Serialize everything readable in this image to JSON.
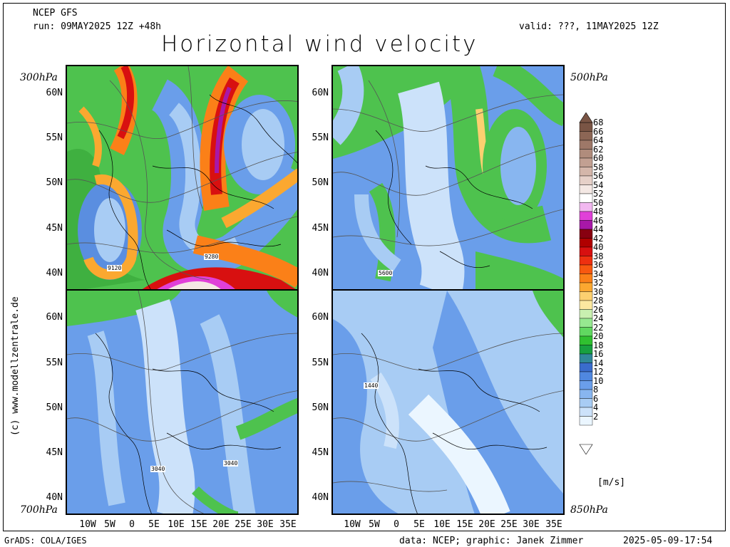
{
  "header": {
    "model": "NCEP GFS",
    "run": "run: 09MAY2025 12Z +48h",
    "valid": "valid: ???, 11MAY2025 12Z",
    "title": "Horizontal wind velocity"
  },
  "levels": {
    "top_left": "300hPa",
    "top_right": "500hPa",
    "bottom_left": "700hPa",
    "bottom_right": "850hPa"
  },
  "credit": "(c) www.modellzentrale.de",
  "lat_labels_top": [
    "60N",
    "55N",
    "50N",
    "45N",
    "40N"
  ],
  "lat_labels_bottom": [
    "60N",
    "55N",
    "50N",
    "45N",
    "40N"
  ],
  "lon_labels": [
    "10W",
    "5W",
    "0",
    "5E",
    "10E",
    "15E",
    "20E",
    "25E",
    "30E",
    "35E"
  ],
  "contour_labels": {
    "p300_a": "9120",
    "p300_b": "9280",
    "p500_a": "5600",
    "p700_a": "3040",
    "p700_b": "3040",
    "p850_a": "1440"
  },
  "colorbar": {
    "ticks": [
      "68",
      "66",
      "64",
      "62",
      "60",
      "58",
      "56",
      "54",
      "52",
      "50",
      "48",
      "46",
      "44",
      "42",
      "40",
      "38",
      "36",
      "34",
      "32",
      "30",
      "28",
      "26",
      "24",
      "22",
      "20",
      "18",
      "16",
      "14",
      "12",
      "10",
      "8",
      "6",
      "4",
      "2"
    ],
    "colors": [
      "#7a5545",
      "#8c6655",
      "#9e7868",
      "#b08c7c",
      "#c2a092",
      "#d4b6aa",
      "#e6d0c8",
      "#f4e8e4",
      "#ffffff",
      "#f2b8f0",
      "#e040d8",
      "#a818a8",
      "#880010",
      "#b00000",
      "#d81010",
      "#ee3010",
      "#f85810",
      "#fb8018",
      "#fba830",
      "#fcd070",
      "#fbe8a0",
      "#c8f0b0",
      "#96e890",
      "#60d860",
      "#30c030",
      "#18a040",
      "#308898",
      "#3a6ccc",
      "#5088e0",
      "#6a9eea",
      "#88b6f0",
      "#a8ccf4",
      "#cce2fa",
      "#ebf6ff"
    ],
    "units": "[m/s]"
  },
  "footer": {
    "left": "GrADS: COLA/IGES",
    "center": "data: NCEP; graphic: Janek Zimmer",
    "right": "2025-05-09-17:54"
  }
}
